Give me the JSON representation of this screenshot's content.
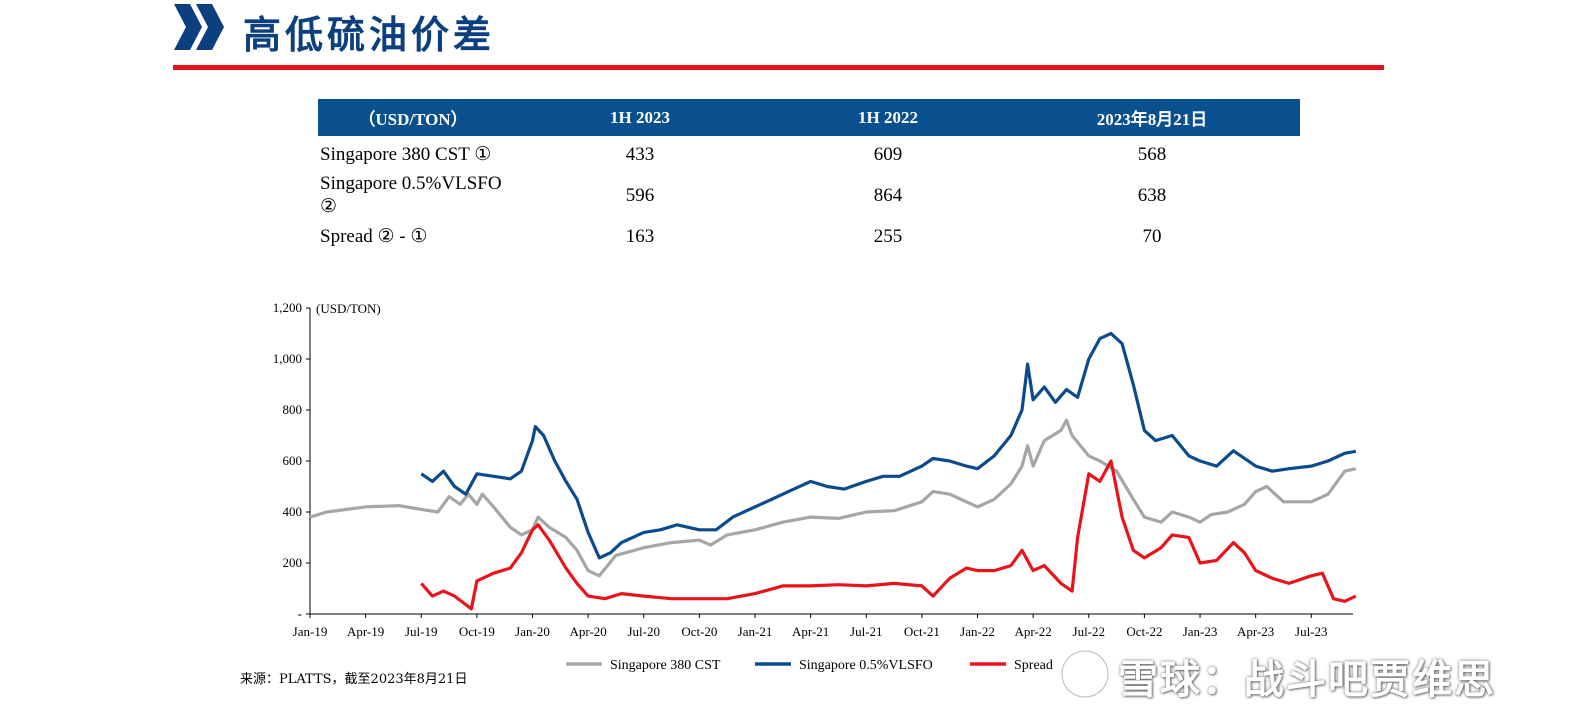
{
  "header": {
    "title": "高低硫油价差"
  },
  "table": {
    "headers": [
      "（USD/TON）",
      "1H 2023",
      "1H 2022",
      "2023年8月21日"
    ],
    "rows": [
      [
        "Singapore 380 CST ①",
        "433",
        "609",
        "568"
      ],
      [
        "Singapore 0.5%VLSFO ②",
        "596",
        "864",
        "638"
      ],
      [
        "Spread ② - ①",
        "163",
        "255",
        "70"
      ]
    ]
  },
  "chart_data": {
    "type": "line",
    "title": "",
    "ylabel": "(USD/TON)",
    "ylim": [
      0,
      1200
    ],
    "yticks": [
      "-",
      "200",
      "400",
      "600",
      "800",
      "1,000",
      "1,200"
    ],
    "ytick_values": [
      0,
      200,
      400,
      600,
      800,
      1000,
      1200
    ],
    "x_categories": [
      "Jan-19",
      "Apr-19",
      "Jul-19",
      "Oct-19",
      "Jan-20",
      "Apr-20",
      "Jul-20",
      "Oct-20",
      "Jan-21",
      "Apr-21",
      "Jul-21",
      "Oct-21",
      "Jan-22",
      "Apr-22",
      "Jul-22",
      "Oct-22",
      "Jan-23",
      "Apr-23",
      "Jul-23"
    ],
    "legend_position": "bottom",
    "series": [
      {
        "name": "Singapore 380 CST",
        "color": "#a6a6a6",
        "points": [
          [
            0,
            380
          ],
          [
            0.3,
            400
          ],
          [
            1,
            420
          ],
          [
            1.6,
            425
          ],
          [
            2,
            410
          ],
          [
            2.3,
            400
          ],
          [
            2.5,
            460
          ],
          [
            2.7,
            430
          ],
          [
            2.85,
            470
          ],
          [
            3,
            430
          ],
          [
            3.1,
            470
          ],
          [
            3.3,
            420
          ],
          [
            3.6,
            340
          ],
          [
            3.8,
            310
          ],
          [
            4,
            330
          ],
          [
            4.1,
            380
          ],
          [
            4.3,
            340
          ],
          [
            4.6,
            300
          ],
          [
            4.8,
            250
          ],
          [
            5,
            170
          ],
          [
            5.2,
            150
          ],
          [
            5.5,
            230
          ],
          [
            6,
            260
          ],
          [
            6.5,
            280
          ],
          [
            7,
            290
          ],
          [
            7.2,
            270
          ],
          [
            7.5,
            310
          ],
          [
            8,
            330
          ],
          [
            8.5,
            360
          ],
          [
            9,
            380
          ],
          [
            9.5,
            375
          ],
          [
            10,
            400
          ],
          [
            10.5,
            405
          ],
          [
            11,
            440
          ],
          [
            11.2,
            480
          ],
          [
            11.5,
            470
          ],
          [
            11.8,
            440
          ],
          [
            12,
            420
          ],
          [
            12.3,
            450
          ],
          [
            12.6,
            510
          ],
          [
            12.8,
            580
          ],
          [
            12.9,
            660
          ],
          [
            13,
            580
          ],
          [
            13.2,
            680
          ],
          [
            13.5,
            720
          ],
          [
            13.6,
            760
          ],
          [
            13.7,
            700
          ],
          [
            14,
            620
          ],
          [
            14.2,
            600
          ],
          [
            14.5,
            560
          ],
          [
            14.8,
            450
          ],
          [
            15,
            380
          ],
          [
            15.3,
            360
          ],
          [
            15.5,
            400
          ],
          [
            15.8,
            380
          ],
          [
            16,
            360
          ],
          [
            16.2,
            390
          ],
          [
            16.5,
            400
          ],
          [
            16.8,
            430
          ],
          [
            17,
            480
          ],
          [
            17.2,
            500
          ],
          [
            17.5,
            440
          ],
          [
            18,
            440
          ],
          [
            18.3,
            470
          ],
          [
            18.6,
            560
          ],
          [
            18.8,
            570
          ]
        ]
      },
      {
        "name": "Singapore 0.5%VLSFO",
        "color": "#0b4a8b",
        "points": [
          [
            2,
            550
          ],
          [
            2.2,
            520
          ],
          [
            2.4,
            560
          ],
          [
            2.6,
            500
          ],
          [
            2.8,
            470
          ],
          [
            3,
            550
          ],
          [
            3.3,
            540
          ],
          [
            3.6,
            530
          ],
          [
            3.8,
            560
          ],
          [
            4,
            680
          ],
          [
            4.05,
            735
          ],
          [
            4.2,
            700
          ],
          [
            4.4,
            600
          ],
          [
            4.6,
            520
          ],
          [
            4.8,
            450
          ],
          [
            5,
            320
          ],
          [
            5.2,
            220
          ],
          [
            5.4,
            240
          ],
          [
            5.6,
            280
          ],
          [
            6,
            320
          ],
          [
            6.3,
            330
          ],
          [
            6.6,
            350
          ],
          [
            7,
            330
          ],
          [
            7.3,
            330
          ],
          [
            7.6,
            380
          ],
          [
            8,
            420
          ],
          [
            8.3,
            450
          ],
          [
            8.6,
            480
          ],
          [
            9,
            520
          ],
          [
            9.3,
            500
          ],
          [
            9.6,
            490
          ],
          [
            10,
            520
          ],
          [
            10.3,
            540
          ],
          [
            10.6,
            540
          ],
          [
            11,
            580
          ],
          [
            11.2,
            610
          ],
          [
            11.5,
            600
          ],
          [
            11.8,
            580
          ],
          [
            12,
            570
          ],
          [
            12.3,
            620
          ],
          [
            12.6,
            700
          ],
          [
            12.8,
            800
          ],
          [
            12.9,
            980
          ],
          [
            13,
            840
          ],
          [
            13.2,
            890
          ],
          [
            13.4,
            830
          ],
          [
            13.6,
            880
          ],
          [
            13.8,
            850
          ],
          [
            14,
            1000
          ],
          [
            14.2,
            1080
          ],
          [
            14.4,
            1100
          ],
          [
            14.6,
            1060
          ],
          [
            14.8,
            900
          ],
          [
            15,
            720
          ],
          [
            15.2,
            680
          ],
          [
            15.5,
            700
          ],
          [
            15.8,
            620
          ],
          [
            16,
            600
          ],
          [
            16.3,
            580
          ],
          [
            16.6,
            640
          ],
          [
            17,
            580
          ],
          [
            17.3,
            560
          ],
          [
            17.6,
            570
          ],
          [
            18,
            580
          ],
          [
            18.3,
            600
          ],
          [
            18.6,
            630
          ],
          [
            18.8,
            638
          ]
        ]
      },
      {
        "name": "Spread",
        "color": "#e8141b",
        "points": [
          [
            2,
            120
          ],
          [
            2.2,
            70
          ],
          [
            2.4,
            90
          ],
          [
            2.6,
            70
          ],
          [
            2.9,
            20
          ],
          [
            3,
            130
          ],
          [
            3.3,
            160
          ],
          [
            3.6,
            180
          ],
          [
            3.8,
            240
          ],
          [
            4,
            330
          ],
          [
            4.1,
            350
          ],
          [
            4.3,
            290
          ],
          [
            4.6,
            180
          ],
          [
            4.8,
            120
          ],
          [
            5,
            70
          ],
          [
            5.3,
            60
          ],
          [
            5.6,
            80
          ],
          [
            6,
            70
          ],
          [
            6.5,
            60
          ],
          [
            7,
            60
          ],
          [
            7.5,
            60
          ],
          [
            8,
            80
          ],
          [
            8.5,
            110
          ],
          [
            9,
            110
          ],
          [
            9.5,
            115
          ],
          [
            10,
            110
          ],
          [
            10.5,
            120
          ],
          [
            11,
            110
          ],
          [
            11.2,
            70
          ],
          [
            11.5,
            140
          ],
          [
            11.8,
            180
          ],
          [
            12,
            170
          ],
          [
            12.3,
            170
          ],
          [
            12.6,
            190
          ],
          [
            12.8,
            250
          ],
          [
            13,
            170
          ],
          [
            13.2,
            190
          ],
          [
            13.5,
            120
          ],
          [
            13.7,
            90
          ],
          [
            13.8,
            300
          ],
          [
            14,
            550
          ],
          [
            14.2,
            520
          ],
          [
            14.4,
            600
          ],
          [
            14.6,
            380
          ],
          [
            14.8,
            250
          ],
          [
            15,
            220
          ],
          [
            15.3,
            260
          ],
          [
            15.5,
            310
          ],
          [
            15.8,
            300
          ],
          [
            16,
            200
          ],
          [
            16.3,
            210
          ],
          [
            16.6,
            280
          ],
          [
            16.8,
            240
          ],
          [
            17,
            170
          ],
          [
            17.3,
            140
          ],
          [
            17.6,
            120
          ],
          [
            18,
            150
          ],
          [
            18.2,
            160
          ],
          [
            18.4,
            60
          ],
          [
            18.6,
            50
          ],
          [
            18.8,
            70
          ]
        ]
      }
    ]
  },
  "source": "来源：PLATTS，截至2023年8月21日",
  "watermark": "雪球：战斗吧贾维思"
}
